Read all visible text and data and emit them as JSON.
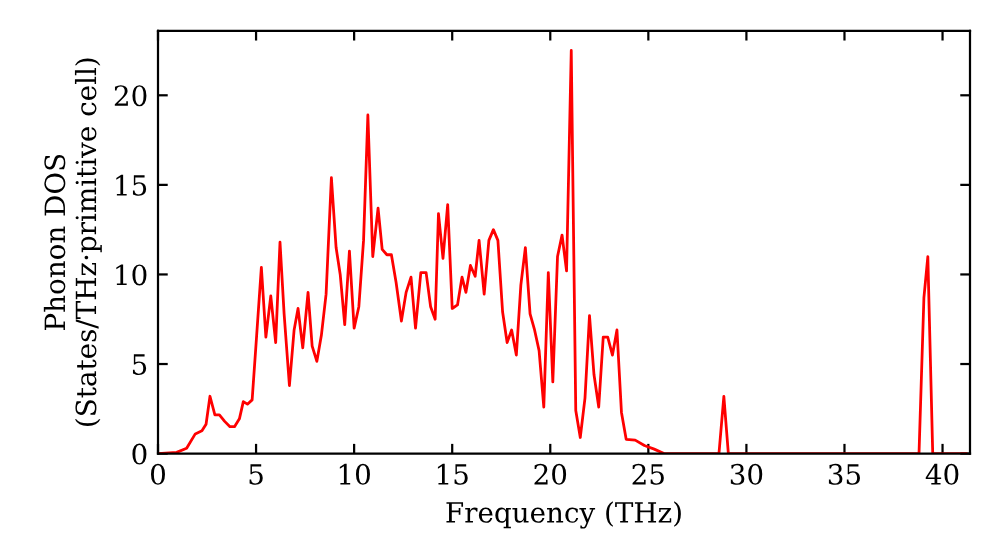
{
  "chart_data": {
    "type": "line",
    "xlabel": "Frequency (THz)",
    "ylabel": "Phonon DOS\n(States/THz·primitive cell)",
    "xlim": [
      0,
      41.4
    ],
    "ylim": [
      0,
      23.6
    ],
    "xticks": [
      0,
      5,
      10,
      15,
      20,
      25,
      30,
      35,
      40
    ],
    "yticks": [
      0,
      5,
      10,
      15,
      20
    ],
    "grid": false,
    "legend": false,
    "marker": "none",
    "line_style": "solid",
    "series": [
      {
        "color": "#ff0000",
        "x": [
          0,
          0.95,
          1.46,
          1.9,
          2.24,
          2.45,
          2.65,
          2.9,
          3.13,
          3.4,
          3.67,
          3.9,
          4.15,
          4.35,
          4.56,
          4.8,
          5.03,
          5.27,
          5.5,
          5.75,
          6.0,
          6.22,
          6.43,
          6.7,
          6.94,
          7.14,
          7.38,
          7.65,
          7.86,
          8.1,
          8.33,
          8.57,
          8.84,
          9.08,
          9.29,
          9.52,
          9.76,
          10.0,
          10.24,
          10.48,
          10.7,
          10.95,
          11.22,
          11.43,
          11.67,
          11.9,
          12.14,
          12.41,
          12.65,
          12.9,
          13.13,
          13.4,
          13.67,
          13.9,
          14.13,
          14.3,
          14.53,
          14.77,
          15.0,
          15.27,
          15.5,
          15.7,
          15.93,
          16.17,
          16.37,
          16.63,
          16.87,
          17.1,
          17.33,
          17.57,
          17.8,
          18.03,
          18.27,
          18.5,
          18.73,
          18.97,
          19.2,
          19.43,
          19.67,
          19.9,
          20.13,
          20.37,
          20.6,
          20.83,
          21.07,
          21.3,
          21.53,
          21.77,
          22.0,
          22.23,
          22.47,
          22.7,
          22.93,
          23.17,
          23.4,
          23.63,
          23.87,
          24.33,
          24.8,
          25.3,
          25.8,
          28.6,
          28.85,
          29.08,
          38.8,
          39.05,
          39.25,
          39.5,
          41.2
        ],
        "values": [
          0,
          0.07,
          0.3,
          1.1,
          1.27,
          1.64,
          3.2,
          2.16,
          2.16,
          1.8,
          1.5,
          1.5,
          1.94,
          2.9,
          2.76,
          3.0,
          6.6,
          10.4,
          6.5,
          8.8,
          6.2,
          11.8,
          7.8,
          3.8,
          6.9,
          8.1,
          5.9,
          9.0,
          6.0,
          5.15,
          6.6,
          8.9,
          15.4,
          11.5,
          10.0,
          7.2,
          11.3,
          7.0,
          8.2,
          11.9,
          18.9,
          11.0,
          13.7,
          11.4,
          11.1,
          11.1,
          9.55,
          7.4,
          9.0,
          9.85,
          7.0,
          10.1,
          10.1,
          8.2,
          7.5,
          13.4,
          10.9,
          13.9,
          8.1,
          8.3,
          9.85,
          9.0,
          10.5,
          9.9,
          11.9,
          8.9,
          11.9,
          12.5,
          11.9,
          7.9,
          6.2,
          6.9,
          5.5,
          9.4,
          11.5,
          7.8,
          6.9,
          5.75,
          2.6,
          10.1,
          4.0,
          11.0,
          12.2,
          10.2,
          22.5,
          2.4,
          0.9,
          3.1,
          7.7,
          4.4,
          2.6,
          6.5,
          6.5,
          5.5,
          6.9,
          2.3,
          0.8,
          0.75,
          0.45,
          0.25,
          0,
          0,
          3.2,
          0,
          0,
          8.7,
          11.0,
          0,
          0
        ]
      }
    ]
  }
}
